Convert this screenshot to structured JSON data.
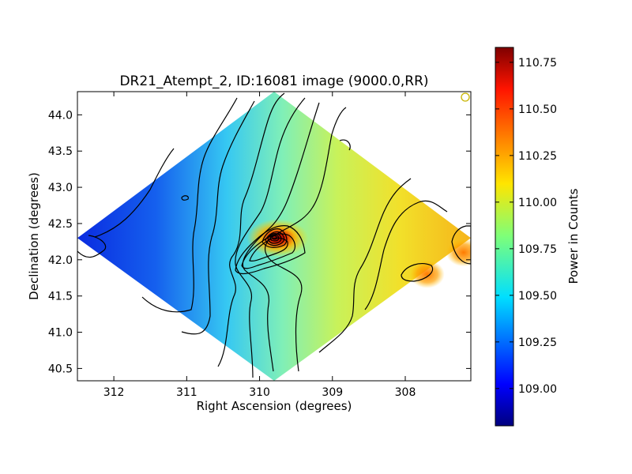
{
  "chart_data": {
    "type": "heatmap",
    "title": "DR21_Atempt_2, ID:16081 image (9000.0,RR)",
    "xlabel": "Right Ascension (degrees)",
    "ylabel": "Declination (degrees)",
    "xlim": [
      312.5,
      307.1
    ],
    "ylim": [
      40.33,
      44.32
    ],
    "x_ticks": [
      312,
      311,
      310,
      309,
      308
    ],
    "y_ticks": [
      40.5,
      41.0,
      41.5,
      42.0,
      42.5,
      43.0,
      43.5,
      44.0
    ],
    "colorbar": {
      "label": "Power in Counts",
      "min": 108.8,
      "max": 110.83,
      "ticks": [
        109.0,
        109.25,
        109.5,
        109.75,
        110.0,
        110.25,
        110.5,
        110.75
      ],
      "colormap": "jet"
    },
    "map_extent": {
      "ra_center": 309.8,
      "dec_center": 42.3,
      "top_dec": 44.32,
      "bottom_dec": 40.33,
      "left_ra": 312.5,
      "right_ra": 307.1
    },
    "sources": [
      {
        "ra": 309.75,
        "dec": 42.3,
        "peak": 110.83,
        "name": ""
      },
      {
        "ra": 307.2,
        "dec": 42.1,
        "peak": 110.4,
        "name": ""
      },
      {
        "ra": 307.7,
        "dec": 41.8,
        "peak": 110.28,
        "name": ""
      }
    ],
    "background_gradient": {
      "west_value": 108.85,
      "east_value": 110.2
    }
  }
}
